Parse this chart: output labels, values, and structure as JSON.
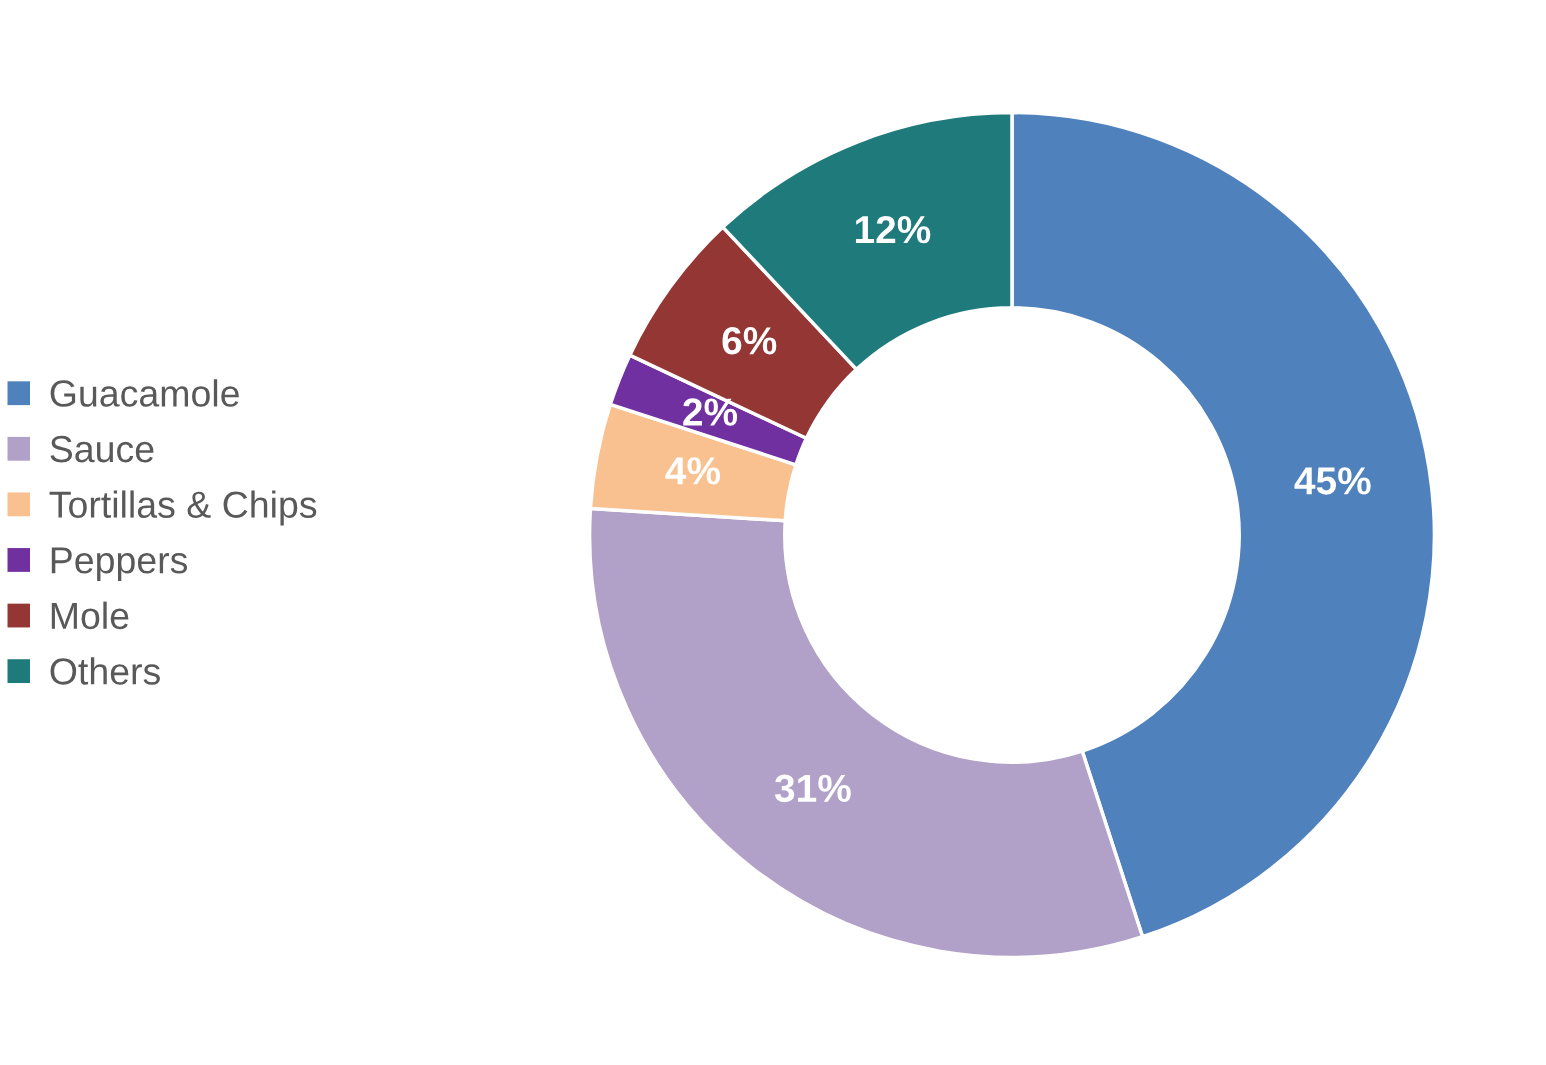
{
  "chart_data": {
    "type": "donut",
    "categories": [
      "Guacamole",
      "Sauce",
      "Tortillas & Chips",
      "Peppers",
      "Mole",
      "Others"
    ],
    "values": [
      45,
      31,
      4,
      2,
      6,
      12
    ],
    "colors": [
      "#4f81bd",
      "#b1a0c7",
      "#f9c090",
      "#7030a0",
      "#943634",
      "#1f7b7b"
    ],
    "value_labels": [
      "45%",
      "31%",
      "4%",
      "2%",
      "6%",
      "12%"
    ],
    "legend": "left"
  }
}
